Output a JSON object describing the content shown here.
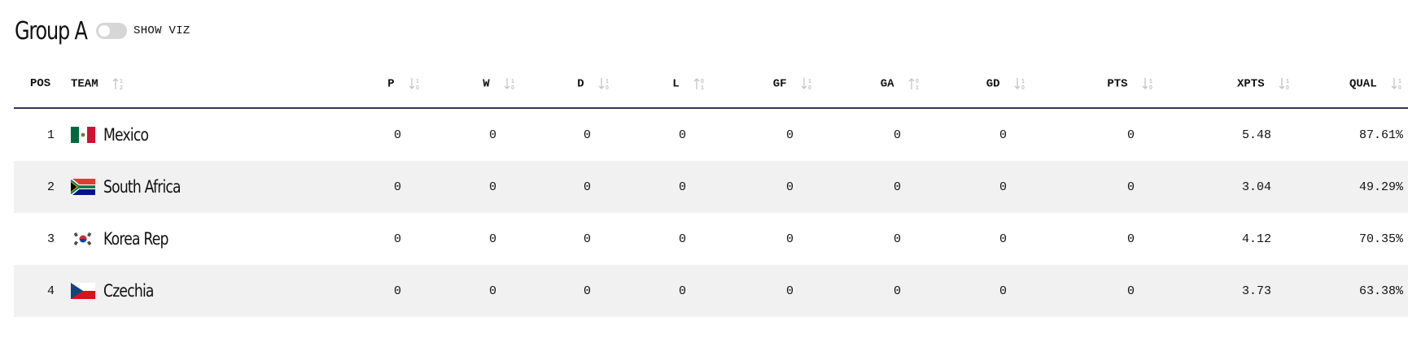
{
  "header": {
    "group_title": "Group A",
    "toggle_label": "SHOW VIZ",
    "toggle_on": false
  },
  "table": {
    "columns": [
      {
        "key": "pos",
        "label": "POS",
        "sort_icon": null
      },
      {
        "key": "team",
        "label": "TEAM",
        "sort_icon": "sort-a-z-icon"
      },
      {
        "key": "p",
        "label": "P",
        "sort_icon": "sort-desc-icon"
      },
      {
        "key": "w",
        "label": "W",
        "sort_icon": "sort-desc-icon"
      },
      {
        "key": "d",
        "label": "D",
        "sort_icon": "sort-desc-icon"
      },
      {
        "key": "l",
        "label": "L",
        "sort_icon": "sort-asc-icon"
      },
      {
        "key": "gf",
        "label": "GF",
        "sort_icon": "sort-desc-icon"
      },
      {
        "key": "ga",
        "label": "GA",
        "sort_icon": "sort-asc-icon"
      },
      {
        "key": "gd",
        "label": "GD",
        "sort_icon": "sort-desc-icon"
      },
      {
        "key": "pts",
        "label": "PTS",
        "sort_icon": "sort-desc-icon"
      },
      {
        "key": "xpts",
        "label": "XPTS",
        "sort_icon": "sort-desc-icon"
      },
      {
        "key": "qual",
        "label": "QUAL",
        "sort_icon": "sort-desc-icon"
      }
    ],
    "rows": [
      {
        "pos": "1",
        "team": "Mexico",
        "flag": "mexico-flag-icon",
        "p": "0",
        "w": "0",
        "d": "0",
        "l": "0",
        "gf": "0",
        "ga": "0",
        "gd": "0",
        "pts": "0",
        "xpts": "5.48",
        "qual": "87.61%"
      },
      {
        "pos": "2",
        "team": "South Africa",
        "flag": "south-africa-flag-icon",
        "p": "0",
        "w": "0",
        "d": "0",
        "l": "0",
        "gf": "0",
        "ga": "0",
        "gd": "0",
        "pts": "0",
        "xpts": "3.04",
        "qual": "49.29%"
      },
      {
        "pos": "3",
        "team": "Korea Rep",
        "flag": "korea-flag-icon",
        "p": "0",
        "w": "0",
        "d": "0",
        "l": "0",
        "gf": "0",
        "ga": "0",
        "gd": "0",
        "pts": "0",
        "xpts": "4.12",
        "qual": "70.35%"
      },
      {
        "pos": "4",
        "team": "Czechia",
        "flag": "czechia-flag-icon",
        "p": "0",
        "w": "0",
        "d": "0",
        "l": "0",
        "gf": "0",
        "ga": "0",
        "gd": "0",
        "pts": "0",
        "xpts": "3.73",
        "qual": "63.38%"
      }
    ]
  },
  "colors": {
    "header_rule": "#3b3358",
    "stripe": "#f1f1f1",
    "text": "#111111",
    "sort_icon": "#c4c4c4",
    "toggle_off": "#d6d6d6"
  }
}
